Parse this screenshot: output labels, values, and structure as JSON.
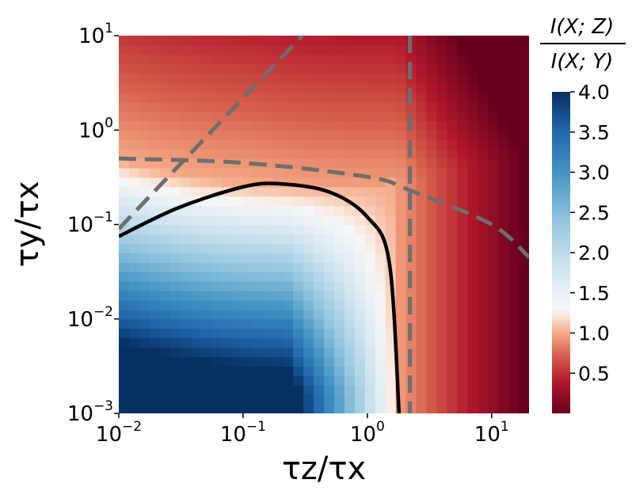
{
  "chart_data": {
    "type": "heatmap",
    "title": "",
    "xlabel": "τz/τx",
    "ylabel": "τy/τx",
    "x_scale": "log",
    "y_scale": "log",
    "xlim": [
      0.01,
      20
    ],
    "ylim": [
      0.001,
      10
    ],
    "x_ticks": [
      {
        "base": "10",
        "exp": "−2",
        "value": 0.01
      },
      {
        "base": "10",
        "exp": "−1",
        "value": 0.1
      },
      {
        "base": "10",
        "exp": "0",
        "value": 1
      },
      {
        "base": "10",
        "exp": "1",
        "value": 10
      }
    ],
    "y_ticks": [
      {
        "base": "10",
        "exp": "−3",
        "value": 0.001
      },
      {
        "base": "10",
        "exp": "−2",
        "value": 0.01
      },
      {
        "base": "10",
        "exp": "−1",
        "value": 0.1
      },
      {
        "base": "10",
        "exp": "0",
        "value": 1
      },
      {
        "base": "10",
        "exp": "1",
        "value": 10
      }
    ],
    "colorbar": {
      "label_numerator": "I(X; Z)",
      "label_denominator": "I(X; Y)",
      "range": [
        0,
        4.0
      ],
      "colormap": "RdBu",
      "ticks": [
        "4.0",
        "3.5",
        "3.0",
        "2.5",
        "2.0",
        "1.5",
        "1.0",
        "0.5"
      ],
      "tick_values": [
        4.0,
        3.5,
        3.0,
        2.5,
        2.0,
        1.5,
        1.0,
        0.5
      ]
    },
    "grid": false,
    "annotations": {
      "contour_level": 1.0,
      "contour_color": "#000000",
      "dashed_color": "#6e6e6e",
      "dashed_lines": [
        {
          "type": "vertical",
          "x": 2.2
        },
        {
          "type": "curve",
          "points": [
            [
              0.01,
              0.5
            ],
            [
              0.1,
              0.45
            ],
            [
              1,
              0.32
            ],
            [
              2.2,
              0.23
            ],
            [
              10,
              0.1
            ],
            [
              20,
              0.045
            ]
          ]
        },
        {
          "type": "diagonal",
          "points": [
            [
              0.01,
              0.09
            ],
            [
              0.3,
              10
            ]
          ]
        }
      ],
      "contour_points": [
        [
          0.01,
          0.075
        ],
        [
          0.03,
          0.15
        ],
        [
          0.1,
          0.25
        ],
        [
          0.2,
          0.27
        ],
        [
          0.5,
          0.22
        ],
        [
          1,
          0.12
        ],
        [
          1.5,
          0.04
        ],
        [
          1.8,
          0.001
        ]
      ]
    }
  }
}
